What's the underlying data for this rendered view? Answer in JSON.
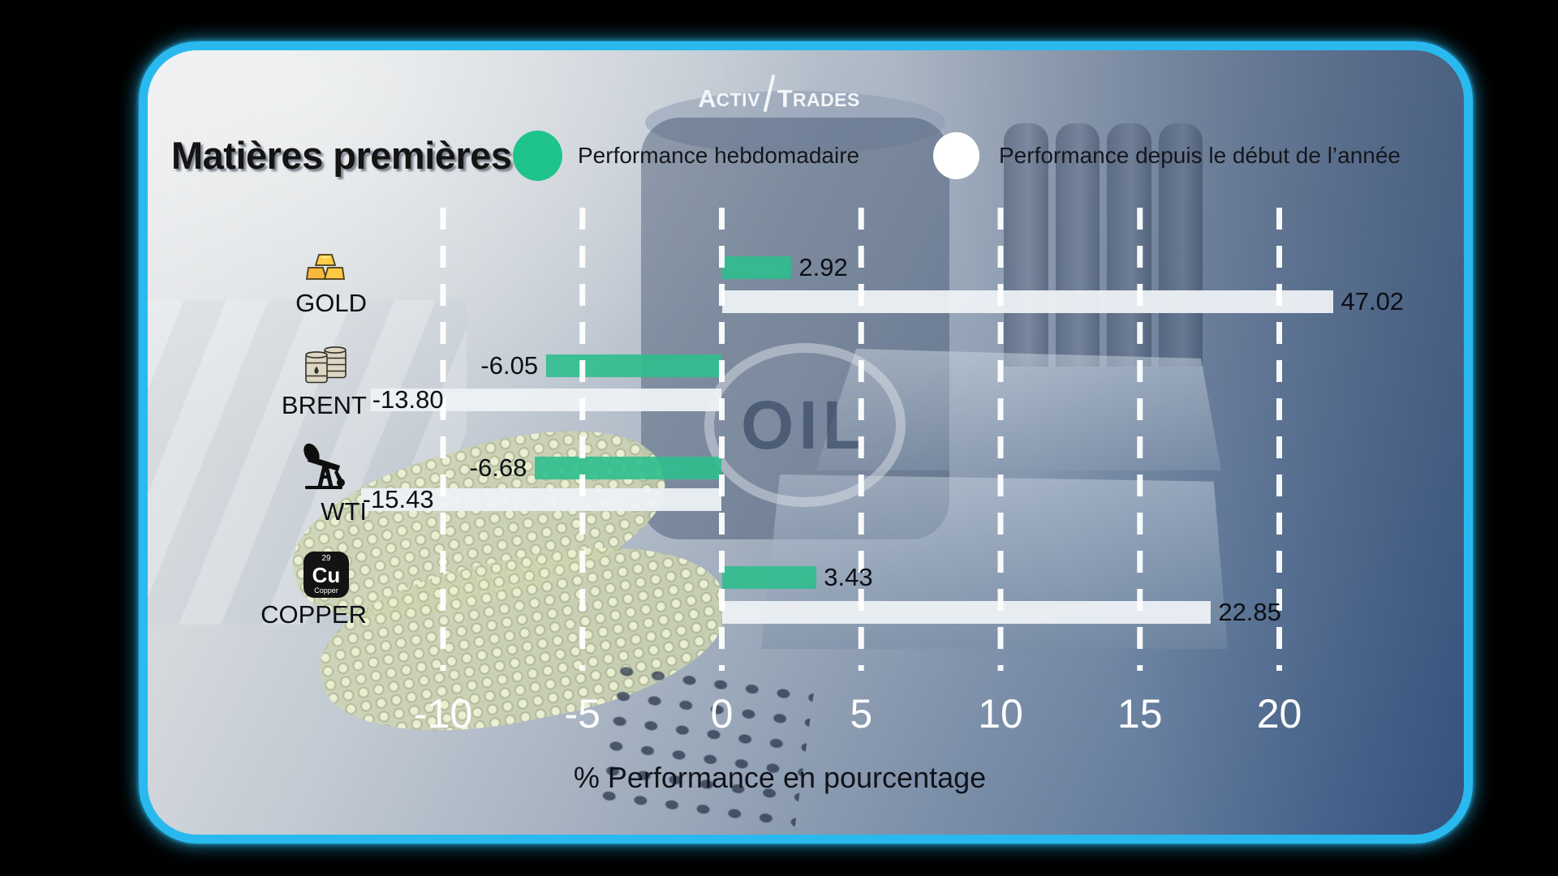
{
  "brand": {
    "logo_part1_initial": "A",
    "logo_part1_rest": "CTIV",
    "logo_part2_initial": "T",
    "logo_part2_rest": "RADES"
  },
  "header": {
    "title": "Matières premières",
    "legend": [
      {
        "label": "Performance hebdomadaire",
        "color": "#1fc48d"
      },
      {
        "label": "Performance depuis le début de l’année",
        "color": "#ffffff"
      }
    ]
  },
  "chart_data": {
    "type": "bar",
    "orientation": "horizontal",
    "title": "Matières premières",
    "xlabel": "% Performance en pourcentage",
    "xlim": [
      -13,
      22
    ],
    "xticks": [
      -10,
      -5,
      0,
      5,
      10,
      15,
      20
    ],
    "grid": "vertical-dashed-white",
    "legend_position": "top",
    "background_text": "OIL",
    "categories": [
      "GOLD",
      "BRENT",
      "WTI",
      "COPPER"
    ],
    "series": [
      {
        "name": "Performance hebdomadaire",
        "color": "#2fbe8e",
        "values": [
          2.92,
          -6.05,
          -6.68,
          3.43
        ]
      },
      {
        "name": "Performance depuis le début de l’année",
        "color": "#edf1f6",
        "values": [
          47.02,
          -13.8,
          -15.43,
          22.85
        ]
      }
    ],
    "rows": [
      {
        "category": "GOLD",
        "icon": "gold-bars-icon",
        "weekly": {
          "value": 2.92,
          "label": "2.92",
          "drawn_extent": [
            0,
            2.5
          ]
        },
        "ytd": {
          "value": 47.02,
          "label": "47.02",
          "drawn_extent": [
            0,
            21.95
          ]
        }
      },
      {
        "category": "BRENT",
        "icon": "oil-barrels-icon",
        "weekly": {
          "value": -6.05,
          "label": "-6.05",
          "drawn_extent": [
            -6.3,
            0
          ]
        },
        "ytd": {
          "value": -13.8,
          "label": "-13.80",
          "drawn_extent": [
            -12.6,
            0
          ]
        }
      },
      {
        "category": "WTI",
        "icon": "oil-pump-jack-icon",
        "weekly": {
          "value": -6.68,
          "label": "-6.68",
          "drawn_extent": [
            -6.7,
            0
          ]
        },
        "ytd": {
          "value": -15.43,
          "label": "-15.43",
          "drawn_extent": [
            -12.95,
            0
          ]
        }
      },
      {
        "category": "COPPER",
        "icon": "copper-element-icon",
        "icon_texts": {
          "number": "29",
          "symbol": "Cu",
          "name": "Copper"
        },
        "weekly": {
          "value": 3.43,
          "label": "3.43",
          "drawn_extent": [
            0,
            3.4
          ]
        },
        "ytd": {
          "value": 22.85,
          "label": "22.85",
          "drawn_extent": [
            0,
            17.55
          ]
        }
      }
    ]
  }
}
